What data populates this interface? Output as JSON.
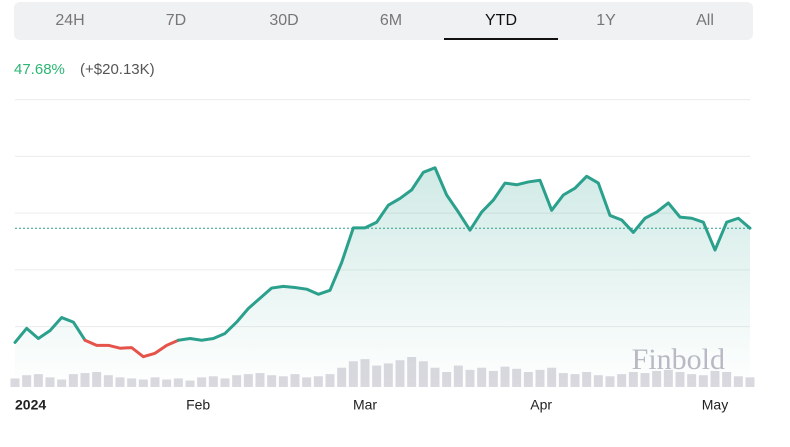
{
  "tabs": [
    "24H",
    "7D",
    "30D",
    "6M",
    "YTD",
    "1Y",
    "All"
  ],
  "active_tab": "YTD",
  "change": {
    "percent": "47.68%",
    "amount": "(+$20.13K)"
  },
  "chart_data": {
    "type": "line",
    "watermark": "Finbold",
    "values": [
      42.22,
      44.7,
      42.9,
      44.3,
      46.6,
      45.8,
      42.6,
      41.7,
      41.7,
      41.2,
      41.3,
      39.7,
      40.3,
      41.7,
      42.6,
      42.9,
      42.6,
      42.9,
      43.8,
      45.8,
      48.2,
      50.0,
      51.8,
      52.1,
      51.9,
      51.6,
      50.7,
      51.4,
      56.3,
      62.4,
      62.4,
      63.4,
      66.4,
      67.6,
      69.1,
      72.2,
      73.0,
      68.2,
      65.2,
      62.0,
      65.2,
      67.3,
      70.3,
      70.0,
      70.5,
      70.8,
      65.5,
      68.2,
      69.4,
      71.5,
      70.3,
      64.6,
      63.8,
      61.6,
      64.1,
      65.2,
      66.8,
      64.3,
      64.1,
      63.4,
      58.5,
      63.4,
      64.1,
      62.35
    ],
    "volume": [
      8,
      11,
      12,
      9,
      7,
      12,
      13,
      14,
      11,
      9,
      8,
      7,
      9,
      7,
      8,
      6,
      9,
      10,
      8,
      11,
      12,
      13,
      11,
      10,
      12,
      9,
      10,
      12,
      18,
      24,
      26,
      20,
      22,
      25,
      28,
      24,
      18,
      14,
      20,
      16,
      18,
      15,
      19,
      17,
      14,
      16,
      18,
      13,
      12,
      14,
      11,
      10,
      12,
      14,
      13,
      15,
      16,
      14,
      12,
      11,
      15,
      14,
      10,
      9
    ],
    "up_color": "#2ba08c",
    "down_color": "#e5534b",
    "ylim": [
      40,
      86
    ],
    "gridlines": [
      45,
      55,
      65,
      75,
      85
    ],
    "xlim": [
      0,
      63
    ],
    "xticks": [
      {
        "value": 0,
        "label": "2024"
      },
      {
        "value": 15.7,
        "label": "Feb"
      },
      {
        "value": 30,
        "label": "Mar"
      },
      {
        "value": 45.1,
        "label": "Apr"
      },
      {
        "value": 60,
        "label": "May"
      }
    ]
  }
}
